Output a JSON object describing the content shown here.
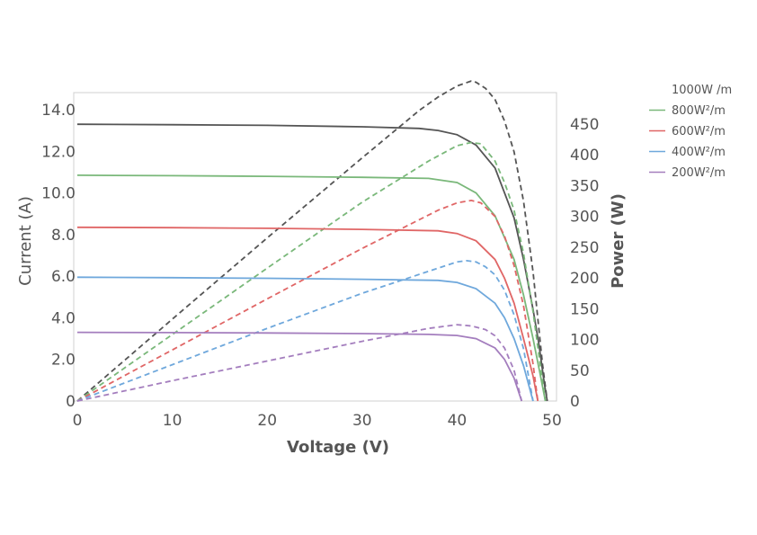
{
  "chart_data": {
    "type": "line",
    "title": "",
    "xlabel": "Voltage (V)",
    "ylabel": "Current (A)",
    "y2label": "Power (W)",
    "xlim": [
      0,
      50
    ],
    "ylim": [
      0,
      14.0
    ],
    "y2lim": [
      0,
      450
    ],
    "x_ticks": [
      "0",
      "10",
      "20",
      "30",
      "40",
      "50"
    ],
    "y_ticks": [
      "0",
      "2.0",
      "4.0",
      "6.0",
      "8.0",
      "10.0",
      "12.0",
      "14.0"
    ],
    "y2_ticks": [
      "0",
      "50",
      "100",
      "150",
      "200",
      "250",
      "300",
      "350",
      "400",
      "450"
    ],
    "legend_position": "right",
    "grid": false,
    "series": [
      {
        "name": "1000W /m",
        "color": "#555555",
        "current": {
          "x": [
            0,
            10,
            20,
            30,
            36,
            38,
            40,
            42,
            44,
            46,
            47,
            48,
            48.6,
            49.2,
            49.5
          ],
          "y": [
            13.3,
            13.28,
            13.25,
            13.18,
            13.1,
            13.0,
            12.8,
            12.3,
            11.2,
            8.8,
            6.8,
            4.4,
            2.8,
            0.8,
            0
          ]
        },
        "power": {
          "x": [
            0,
            10,
            20,
            30,
            36,
            38,
            40,
            41.5,
            42,
            43,
            44,
            45,
            46,
            47,
            48,
            49,
            49.5
          ],
          "y": [
            0,
            133,
            265,
            395,
            472,
            494,
            512,
            520,
            518,
            508,
            490,
            455,
            405,
            325,
            210,
            60,
            0
          ]
        }
      },
      {
        "name": "800W²/m",
        "color": "#7ab87a",
        "current": {
          "x": [
            0,
            10,
            20,
            30,
            37,
            40,
            42,
            44,
            46,
            47,
            48,
            48.7,
            49.3
          ],
          "y": [
            10.85,
            10.83,
            10.8,
            10.75,
            10.7,
            10.5,
            10.0,
            8.9,
            6.8,
            5.1,
            3.0,
            1.4,
            0
          ]
        },
        "power": {
          "x": [
            0,
            10,
            20,
            30,
            37,
            40,
            41.5,
            42.5,
            44,
            45,
            46,
            47,
            48,
            48.7,
            49.3
          ],
          "y": [
            0,
            108,
            216,
            323,
            390,
            415,
            420,
            418,
            390,
            355,
            310,
            240,
            145,
            65,
            0
          ]
        }
      },
      {
        "name": "600W²/m",
        "color": "#e06666",
        "current": {
          "x": [
            0,
            10,
            20,
            30,
            38,
            40,
            42,
            44,
            45,
            46,
            47,
            48,
            48.5
          ],
          "y": [
            8.35,
            8.33,
            8.3,
            8.25,
            8.18,
            8.05,
            7.7,
            6.8,
            5.9,
            4.7,
            3.0,
            1.2,
            0
          ]
        },
        "power": {
          "x": [
            0,
            10,
            20,
            30,
            38,
            40,
            41.5,
            42.5,
            44,
            45,
            46,
            47,
            48,
            48.5
          ],
          "y": [
            0,
            83,
            166,
            248,
            310,
            322,
            326,
            322,
            300,
            268,
            220,
            155,
            60,
            0
          ]
        }
      },
      {
        "name": "400W²/m",
        "color": "#6fa8dc",
        "current": {
          "x": [
            0,
            10,
            20,
            30,
            38,
            40,
            42,
            44,
            45,
            46,
            47,
            48
          ],
          "y": [
            5.95,
            5.93,
            5.9,
            5.85,
            5.8,
            5.7,
            5.4,
            4.7,
            4.0,
            3.0,
            1.7,
            0
          ]
        },
        "power": {
          "x": [
            0,
            10,
            20,
            30,
            38,
            40,
            41,
            42,
            43,
            44,
            45,
            46,
            47,
            48
          ],
          "y": [
            0,
            59,
            118,
            175,
            216,
            226,
            228,
            226,
            218,
            205,
            180,
            140,
            85,
            0
          ]
        }
      },
      {
        "name": "200W²/m",
        "color": "#a47ebe",
        "current": {
          "x": [
            0,
            10,
            20,
            30,
            37,
            40,
            42,
            44,
            45,
            46,
            46.8
          ],
          "y": [
            3.3,
            3.29,
            3.27,
            3.24,
            3.2,
            3.15,
            3.0,
            2.55,
            2.0,
            1.1,
            0
          ]
        },
        "power": {
          "x": [
            0,
            10,
            20,
            30,
            37,
            39,
            40,
            41.5,
            43,
            44,
            45,
            46,
            46.8
          ],
          "y": [
            0,
            33,
            65,
            97,
            118,
            122,
            124,
            122,
            116,
            106,
            86,
            50,
            0
          ]
        }
      }
    ]
  }
}
